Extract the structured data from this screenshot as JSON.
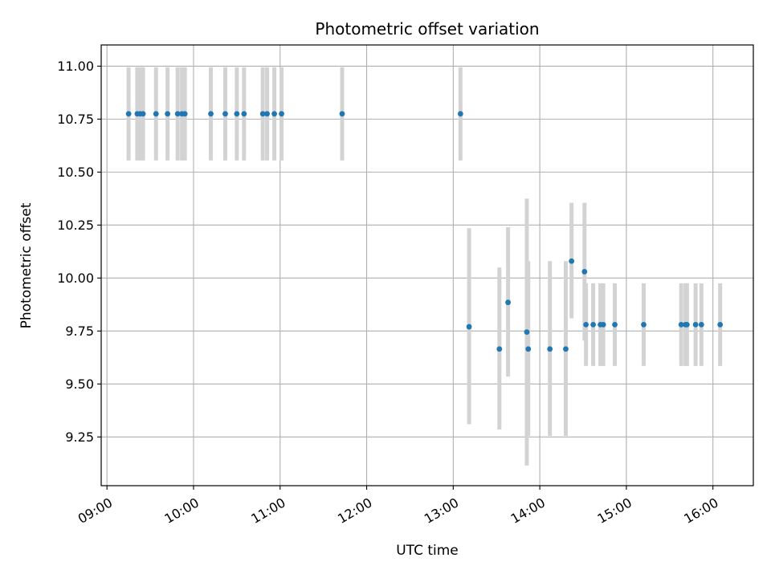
{
  "chart_data": {
    "type": "scatter",
    "title": "Photometric offset variation",
    "xlabel": "UTC time",
    "ylabel": "Photometric offset",
    "x_axis_kind": "time",
    "xlim": [
      "08:56",
      "16:28"
    ],
    "ylim": [
      9.02,
      11.1
    ],
    "x_ticks": [
      "09:00",
      "10:00",
      "11:00",
      "12:00",
      "13:00",
      "14:00",
      "15:00",
      "16:00"
    ],
    "y_ticks": [
      9.25,
      9.5,
      9.75,
      10.0,
      10.25,
      10.5,
      10.75,
      11.0
    ],
    "y_tick_labels": [
      "9.25",
      "9.50",
      "9.75",
      "10.00",
      "10.25",
      "10.50",
      "10.75",
      "11.00"
    ],
    "grid": true,
    "legend": "none",
    "colors": {
      "point": "#1f77b4",
      "errorbar": "#d3d3d3",
      "grid": "#b0b0b0"
    },
    "points": [
      {
        "x": "09:15",
        "y": 10.775,
        "lo": 10.555,
        "hi": 10.995
      },
      {
        "x": "09:21",
        "y": 10.775,
        "lo": 10.555,
        "hi": 10.995
      },
      {
        "x": "09:23",
        "y": 10.775,
        "lo": 10.555,
        "hi": 10.995
      },
      {
        "x": "09:25",
        "y": 10.775,
        "lo": 10.555,
        "hi": 10.995
      },
      {
        "x": "09:34",
        "y": 10.775,
        "lo": 10.555,
        "hi": 10.995
      },
      {
        "x": "09:42",
        "y": 10.775,
        "lo": 10.555,
        "hi": 10.995
      },
      {
        "x": "09:49",
        "y": 10.775,
        "lo": 10.555,
        "hi": 10.995
      },
      {
        "x": "09:52",
        "y": 10.775,
        "lo": 10.555,
        "hi": 10.995
      },
      {
        "x": "09:54",
        "y": 10.775,
        "lo": 10.555,
        "hi": 10.995
      },
      {
        "x": "10:12",
        "y": 10.775,
        "lo": 10.555,
        "hi": 10.995
      },
      {
        "x": "10:22",
        "y": 10.775,
        "lo": 10.555,
        "hi": 10.995
      },
      {
        "x": "10:30",
        "y": 10.775,
        "lo": 10.555,
        "hi": 10.995
      },
      {
        "x": "10:35",
        "y": 10.775,
        "lo": 10.555,
        "hi": 10.995
      },
      {
        "x": "10:48",
        "y": 10.775,
        "lo": 10.555,
        "hi": 10.995
      },
      {
        "x": "10:51",
        "y": 10.775,
        "lo": 10.555,
        "hi": 10.995
      },
      {
        "x": "10:56",
        "y": 10.775,
        "lo": 10.555,
        "hi": 10.995
      },
      {
        "x": "11:01",
        "y": 10.775,
        "lo": 10.555,
        "hi": 10.995
      },
      {
        "x": "11:43",
        "y": 10.775,
        "lo": 10.555,
        "hi": 10.995
      },
      {
        "x": "13:05",
        "y": 10.775,
        "lo": 10.555,
        "hi": 10.995
      },
      {
        "x": "13:11",
        "y": 9.77,
        "lo": 9.31,
        "hi": 10.235
      },
      {
        "x": "13:32",
        "y": 9.665,
        "lo": 9.285,
        "hi": 10.05
      },
      {
        "x": "13:38",
        "y": 9.885,
        "lo": 9.535,
        "hi": 10.24
      },
      {
        "x": "13:51",
        "y": 9.745,
        "lo": 9.115,
        "hi": 10.375
      },
      {
        "x": "13:52",
        "y": 9.665,
        "lo": 9.255,
        "hi": 10.08
      },
      {
        "x": "14:07",
        "y": 9.665,
        "lo": 9.255,
        "hi": 10.08
      },
      {
        "x": "14:18",
        "y": 9.665,
        "lo": 9.255,
        "hi": 10.08
      },
      {
        "x": "14:22",
        "y": 10.08,
        "lo": 9.81,
        "hi": 10.355
      },
      {
        "x": "14:31",
        "y": 10.03,
        "lo": 9.705,
        "hi": 10.355
      },
      {
        "x": "14:32",
        "y": 9.78,
        "lo": 9.585,
        "hi": 9.975
      },
      {
        "x": "14:37",
        "y": 9.78,
        "lo": 9.585,
        "hi": 9.975
      },
      {
        "x": "14:42",
        "y": 9.78,
        "lo": 9.585,
        "hi": 9.975
      },
      {
        "x": "14:44",
        "y": 9.78,
        "lo": 9.585,
        "hi": 9.975
      },
      {
        "x": "14:52",
        "y": 9.78,
        "lo": 9.585,
        "hi": 9.975
      },
      {
        "x": "15:12",
        "y": 9.78,
        "lo": 9.585,
        "hi": 9.975
      },
      {
        "x": "15:38",
        "y": 9.78,
        "lo": 9.585,
        "hi": 9.975
      },
      {
        "x": "15:41",
        "y": 9.78,
        "lo": 9.585,
        "hi": 9.975
      },
      {
        "x": "15:42",
        "y": 9.78,
        "lo": 9.585,
        "hi": 9.975
      },
      {
        "x": "15:48",
        "y": 9.78,
        "lo": 9.585,
        "hi": 9.975
      },
      {
        "x": "15:52",
        "y": 9.78,
        "lo": 9.585,
        "hi": 9.975
      },
      {
        "x": "16:05",
        "y": 9.78,
        "lo": 9.585,
        "hi": 9.975
      }
    ]
  }
}
